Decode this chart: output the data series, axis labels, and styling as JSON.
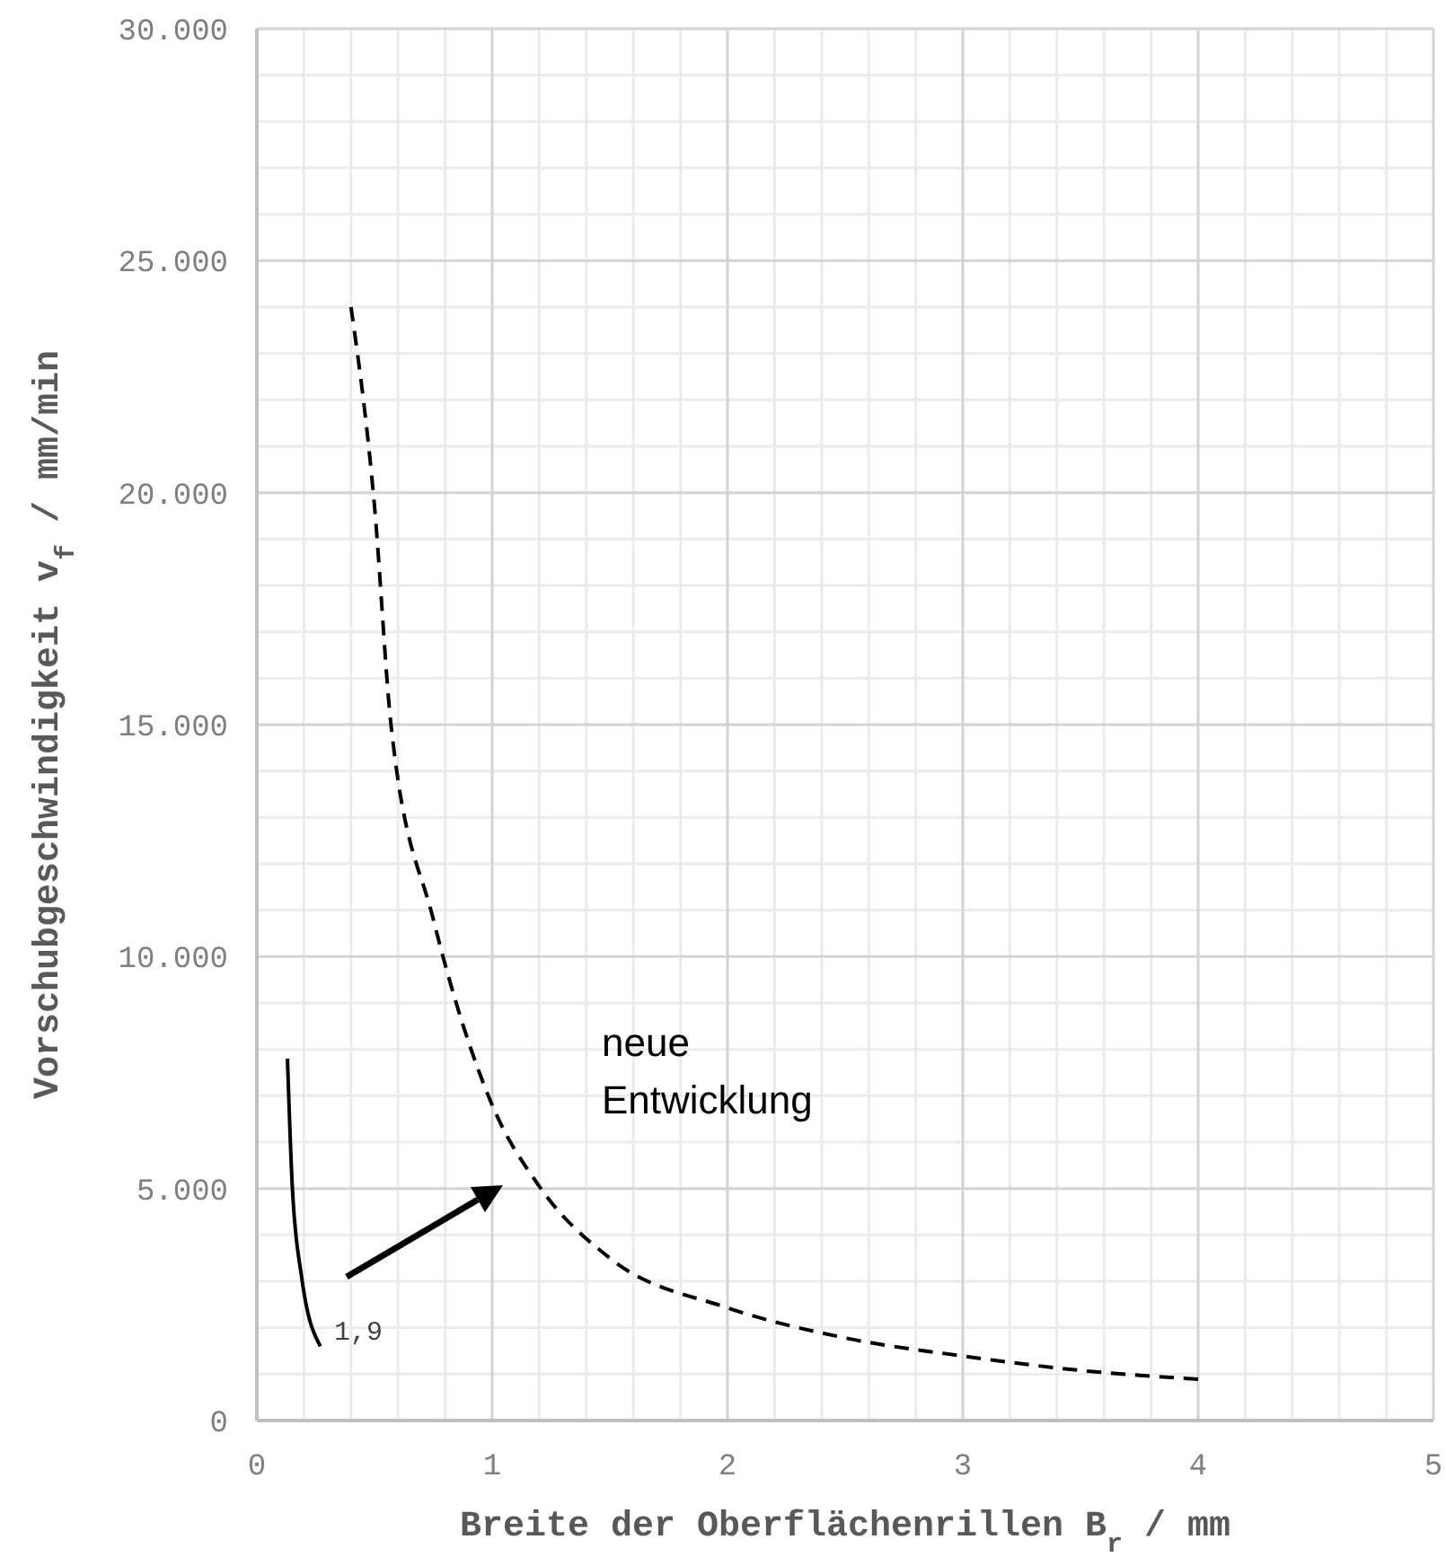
{
  "chart_data": {
    "type": "line",
    "xlabel": "Breite der Oberflächenrillen B$_{r}$ / mm",
    "ylabel": "Vorschubgeschwindigkeit v$_{f}$ / mm/min",
    "xlim": [
      0,
      5
    ],
    "xticks": [
      0,
      1,
      2,
      3,
      4,
      5
    ],
    "ylim": [
      0,
      30000
    ],
    "yticks": [
      {
        "value": 0,
        "label": "0"
      },
      {
        "value": 5000,
        "label": "5.000"
      },
      {
        "value": 10000,
        "label": "10.000"
      },
      {
        "value": 15000,
        "label": "15.000"
      },
      {
        "value": 20000,
        "label": "20.000"
      },
      {
        "value": 25000,
        "label": "25.000"
      },
      {
        "value": 30000,
        "label": "30.000"
      }
    ],
    "grid": true,
    "marker": "none",
    "series": [
      {
        "color": "#000000",
        "line_style": "solid",
        "x": [
          0.13,
          0.15,
          0.19,
          0.27
        ],
        "values": [
          7800,
          5100,
          3100,
          1600
        ]
      },
      {
        "color": "#000000",
        "line_style": "dashed",
        "x": [
          0.4,
          0.5,
          0.57,
          0.75,
          1.0,
          1.2,
          1.5,
          2.0,
          2.5,
          3.0,
          3.5,
          4.0
        ],
        "values": [
          24000,
          19700,
          15000,
          10800,
          6800,
          5050,
          3500,
          2430,
          1780,
          1390,
          1080,
          890
        ]
      }
    ],
    "annotations": [
      "neue Entwicklung",
      "1,9"
    ]
  }
}
